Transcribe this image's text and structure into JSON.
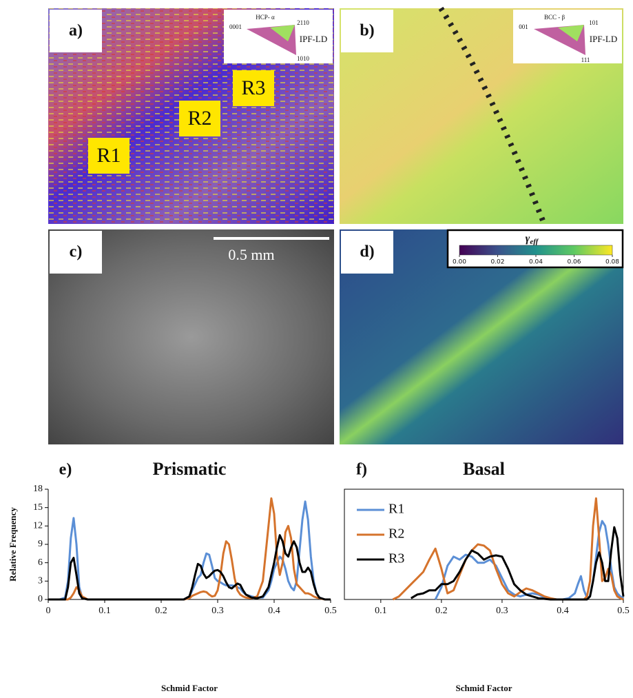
{
  "panels": {
    "a": {
      "label": "a)",
      "legend_title": "HCP- α",
      "corner_left": "0001",
      "corner_right": "2110",
      "corner_bottom": "1010",
      "key": "IPF-LD",
      "regions": [
        "R1",
        "R2",
        "R3"
      ]
    },
    "b": {
      "label": "b)",
      "legend_title": "BCC - β",
      "corner_left": "001",
      "corner_right": "101",
      "corner_bottom": "111",
      "key": "IPF-LD"
    },
    "c": {
      "label": "c)",
      "scale_bar": "0.5 mm"
    },
    "d": {
      "label": "d)",
      "colorbar": {
        "label": "γ",
        "label_sub": "eff",
        "lim": [
          0,
          0.08
        ],
        "ticks": [
          {
            "value": 0,
            "label": "0.00"
          },
          {
            "value": 0.02,
            "label": "0.02"
          },
          {
            "value": 0.04,
            "label": "0.04"
          },
          {
            "value": 0.06,
            "label": "0.06"
          },
          {
            "value": 0.08,
            "label": "0.08"
          }
        ]
      }
    }
  },
  "chart_data": [
    {
      "type": "line",
      "panel_label": "e)",
      "title": "Prismatic",
      "x_label": "Schmid Factor",
      "y_label": "Relative Frequency",
      "xlim": [
        0,
        0.5
      ],
      "xticks": [
        0,
        0.1,
        0.2,
        0.3,
        0.4,
        0.5
      ],
      "ylim": [
        0,
        18
      ],
      "yticks": [
        0,
        3,
        6,
        9,
        12,
        15,
        18
      ],
      "x": [
        0,
        0.02,
        0.03,
        0.035,
        0.04,
        0.045,
        0.05,
        0.055,
        0.06,
        0.07,
        0.1,
        0.2,
        0.24,
        0.25,
        0.255,
        0.26,
        0.265,
        0.27,
        0.275,
        0.28,
        0.285,
        0.29,
        0.295,
        0.3,
        0.305,
        0.31,
        0.315,
        0.32,
        0.325,
        0.33,
        0.335,
        0.34,
        0.345,
        0.35,
        0.36,
        0.37,
        0.38,
        0.39,
        0.395,
        0.4,
        0.405,
        0.41,
        0.415,
        0.42,
        0.425,
        0.43,
        0.435,
        0.44,
        0.445,
        0.45,
        0.455,
        0.46,
        0.465,
        0.47,
        0.475,
        0.48,
        0.49,
        0.5
      ],
      "series": [
        {
          "name": "R1",
          "color": "#5b8fd6",
          "values": [
            0,
            0,
            0.3,
            3,
            10,
            13.3,
            9,
            2,
            0.3,
            0,
            0,
            0,
            0,
            0.5,
            1.5,
            2.5,
            3.5,
            4,
            6,
            7.5,
            7.3,
            5.5,
            3.5,
            3,
            2.8,
            2.5,
            2.3,
            2.3,
            2.3,
            2.2,
            2,
            1.8,
            1.2,
            0.8,
            0.5,
            0.3,
            0.3,
            1.5,
            3,
            5,
            6,
            7,
            6.5,
            5,
            3,
            2,
            1.5,
            3,
            8,
            13,
            16,
            13,
            7,
            3,
            1,
            0.3,
            0,
            0
          ]
        },
        {
          "name": "R2",
          "color": "#d5732c",
          "values": [
            0,
            0,
            0,
            0,
            0.3,
            1,
            2,
            1.5,
            0.5,
            0,
            0,
            0,
            0,
            0.2,
            0.6,
            0.8,
            1,
            1.2,
            1.3,
            1.2,
            0.8,
            0.5,
            0.6,
            1.5,
            4,
            7.5,
            9.5,
            9,
            6.5,
            3.5,
            1.5,
            0.8,
            0.5,
            0.3,
            0.2,
            0.5,
            3,
            12,
            16.5,
            14,
            7,
            4,
            6,
            11,
            12,
            10,
            5,
            2.5,
            2,
            1.5,
            1,
            1,
            0.8,
            0.5,
            0.3,
            0.2,
            0,
            0
          ]
        },
        {
          "name": "R3",
          "color": "#000000",
          "values": [
            0,
            0,
            0,
            2,
            6,
            6.8,
            4,
            1,
            0.2,
            0,
            0,
            0,
            0,
            0.5,
            2,
            4,
            5.8,
            5.5,
            4.2,
            3.5,
            3.8,
            4.3,
            4.7,
            4.8,
            4.5,
            3.8,
            2.8,
            2,
            1.8,
            2.2,
            2.6,
            2.4,
            1.5,
            0.8,
            0.3,
            0.2,
            0.5,
            2,
            4,
            6,
            8.5,
            10.5,
            9.5,
            7.5,
            7,
            8.5,
            9.5,
            8.5,
            6,
            4.5,
            4.5,
            5.2,
            4.5,
            2.5,
            1,
            0.3,
            0,
            0
          ]
        }
      ]
    },
    {
      "type": "line",
      "panel_label": "f)",
      "title": "Basal",
      "x_label": "Schmid Factor",
      "legend": "upper left",
      "xlim": [
        0.04,
        0.5
      ],
      "xticks": [
        0.1,
        0.2,
        0.3,
        0.4,
        0.5
      ],
      "ylim": [
        0,
        18
      ],
      "x": [
        0.12,
        0.13,
        0.14,
        0.15,
        0.16,
        0.17,
        0.18,
        0.19,
        0.2,
        0.21,
        0.22,
        0.23,
        0.24,
        0.25,
        0.26,
        0.27,
        0.28,
        0.29,
        0.3,
        0.31,
        0.32,
        0.33,
        0.34,
        0.35,
        0.36,
        0.37,
        0.38,
        0.39,
        0.4,
        0.41,
        0.42,
        0.425,
        0.43,
        0.435,
        0.44,
        0.445,
        0.45,
        0.455,
        0.46,
        0.465,
        0.47,
        0.475,
        0.48,
        0.485,
        0.49,
        0.495,
        0.5
      ],
      "series": [
        {
          "name": "R1",
          "color": "#5b8fd6",
          "values": [
            null,
            null,
            null,
            null,
            null,
            null,
            null,
            0,
            2,
            5.5,
            7,
            6.5,
            7.3,
            7,
            6,
            6,
            6.5,
            5.5,
            3.5,
            1.5,
            0.8,
            0.5,
            0.8,
            1,
            0.8,
            0.3,
            0.1,
            0,
            0,
            0.2,
            1,
            2.5,
            3.8,
            1.5,
            0.3,
            0.5,
            3,
            7,
            11,
            12.8,
            12,
            9,
            5,
            2,
            1,
            0.5,
            0.2
          ]
        },
        {
          "name": "R2",
          "color": "#d5732c",
          "values": [
            0,
            0.5,
            1.5,
            2.5,
            3.5,
            4.5,
            6.5,
            8.3,
            5,
            1,
            1.5,
            4,
            6.5,
            8,
            9,
            8.8,
            8,
            5,
            2.5,
            1,
            0.5,
            1.2,
            1.8,
            1.5,
            1,
            0.5,
            0.2,
            0,
            0,
            0,
            0,
            0,
            0,
            0,
            0.5,
            3,
            12,
            16.5,
            10,
            3,
            3.5,
            5,
            4,
            1.5,
            0.5,
            0.2,
            0
          ]
        },
        {
          "name": "R3",
          "color": "#000000",
          "values": [
            null,
            null,
            null,
            0.2,
            0.8,
            1,
            1.5,
            1.5,
            2.5,
            2.5,
            3,
            4.5,
            6.5,
            8,
            7.5,
            6.5,
            7,
            7.2,
            7,
            5,
            2.5,
            1.5,
            0.8,
            0.5,
            0.2,
            0.1,
            0,
            0,
            0,
            0,
            0,
            0,
            0,
            0,
            0,
            0.5,
            3,
            6,
            7.7,
            6,
            3,
            3,
            8,
            11.8,
            10,
            4,
            0.5
          ]
        }
      ]
    }
  ]
}
